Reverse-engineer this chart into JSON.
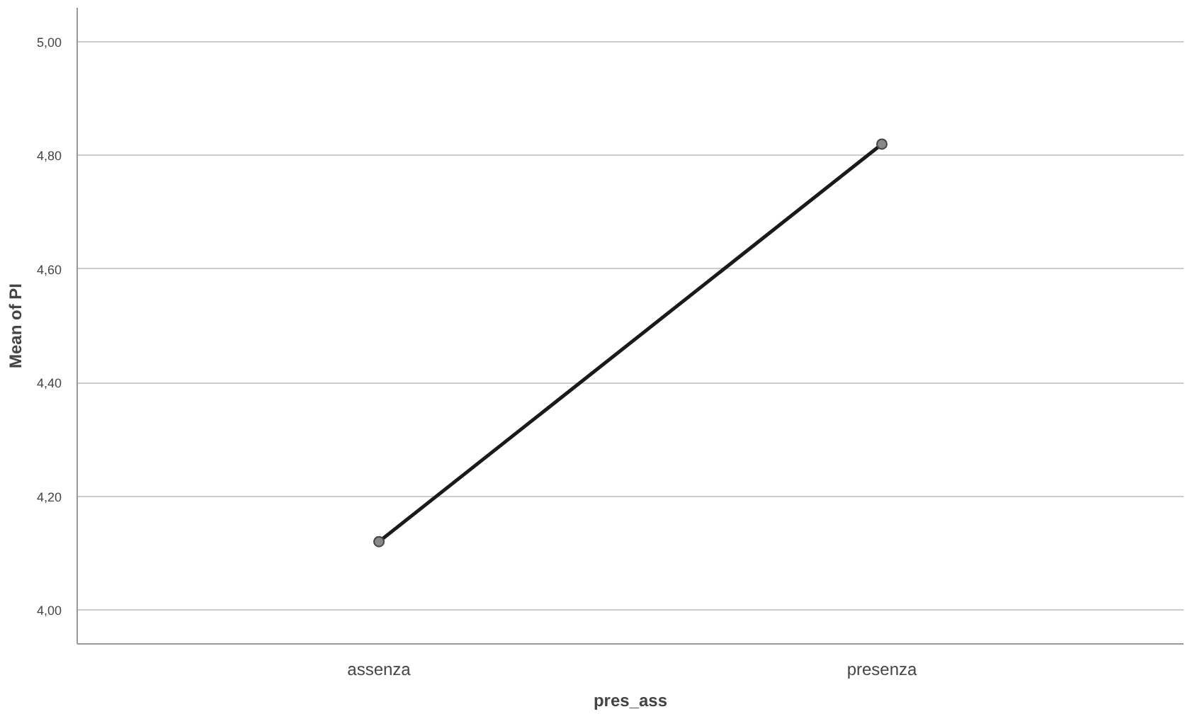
{
  "chart_data": {
    "type": "line",
    "xlabel": "pres_ass",
    "ylabel": "Mean of PI",
    "categories": [
      "assenza",
      "presenza"
    ],
    "series": [
      {
        "color": "#1a1a1a",
        "values": [
          4.12,
          4.82
        ]
      }
    ],
    "ylim": [
      3.94,
      5.06
    ],
    "yticks": [
      {
        "value": 4.0,
        "label": "4,00"
      },
      {
        "value": 4.2,
        "label": "4,20"
      },
      {
        "value": 4.4,
        "label": "4,40"
      },
      {
        "value": 4.6,
        "label": "4,60"
      },
      {
        "value": 4.8,
        "label": "4,80"
      },
      {
        "value": 5.0,
        "label": "5,00"
      }
    ],
    "grid": "y",
    "marker": "circle",
    "line_style": "solid"
  }
}
